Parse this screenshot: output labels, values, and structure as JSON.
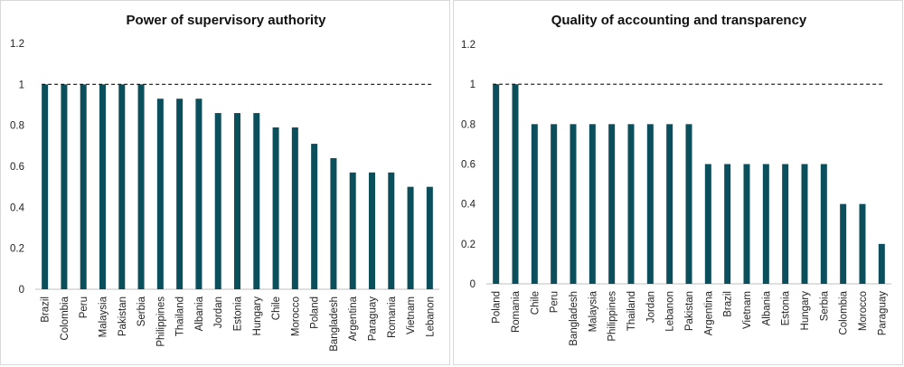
{
  "chart_data": [
    {
      "type": "bar",
      "title": "Power of supervisory authority",
      "xlabel": "",
      "ylabel": "",
      "ylim": [
        0,
        1.2
      ],
      "yticks": [
        "0",
        "0.2",
        "0.4",
        "0.6",
        "0.8",
        "1",
        "1.2"
      ],
      "reference_line": 1,
      "grid": false,
      "bar_color": "#0b4f5c",
      "categories": [
        "Brazil",
        "Colombia",
        "Peru",
        "Malaysia",
        "Pakistan",
        "Serbia",
        "Philippines",
        "Thailand",
        "Albania",
        "Jordan",
        "Estonia",
        "Hungary",
        "Chile",
        "Morocco",
        "Poland",
        "Bangladesh",
        "Argentina",
        "Paraguay",
        "Romania",
        "Vietnam",
        "Lebanon"
      ],
      "values": [
        1,
        1,
        1,
        1,
        1,
        1,
        0.93,
        0.93,
        0.93,
        0.86,
        0.86,
        0.86,
        0.79,
        0.79,
        0.71,
        0.64,
        0.57,
        0.57,
        0.57,
        0.5,
        0.5
      ]
    },
    {
      "type": "bar",
      "title": "Quality of accounting and transparency",
      "xlabel": "",
      "ylabel": "",
      "ylim": [
        0,
        1.2
      ],
      "yticks": [
        "0",
        "0.2",
        "0.4",
        "0.6",
        "0.8",
        "1",
        "1.2"
      ],
      "reference_line": 1,
      "grid": false,
      "bar_color": "#0b4f5c",
      "categories": [
        "Poland",
        "Romania",
        "Chile",
        "Peru",
        "Bangladesh",
        "Malaysia",
        "Philippines",
        "Thailand",
        "Jordan",
        "Lebanon",
        "Pakistan",
        "Argentina",
        "Brazil",
        "Vietnam",
        "Albania",
        "Estonia",
        "Hungary",
        "Serbia",
        "Colombia",
        "Morocco",
        "Paraguay"
      ],
      "values": [
        1,
        1,
        0.8,
        0.8,
        0.8,
        0.8,
        0.8,
        0.8,
        0.8,
        0.8,
        0.8,
        0.6,
        0.6,
        0.6,
        0.6,
        0.6,
        0.6,
        0.6,
        0.4,
        0.4,
        0.2
      ]
    }
  ]
}
